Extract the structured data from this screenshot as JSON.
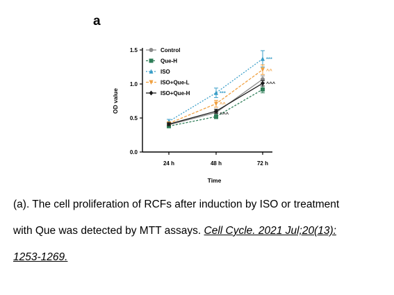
{
  "figure": {
    "panel_label": "a",
    "caption": {
      "line1": "(a). The cell proliferation of RCFs after induction by ISO or treatment",
      "line2_text": "with Que was detected by MTT assays.",
      "line2_ref": "Cell Cycle. 2021 Jul;20(13):",
      "line3_ref": "1253-1269."
    }
  },
  "chart_data": {
    "type": "line",
    "xlabel": "Time",
    "ylabel": "OD value",
    "categories": [
      "24 h",
      "48 h",
      "72 h"
    ],
    "ylim": [
      0.0,
      1.5
    ],
    "yticks": [
      "0.0",
      "0.5",
      "1.0",
      "1.5"
    ],
    "grid": false,
    "legend_position": "top-left",
    "series": [
      {
        "name": "Control",
        "values": [
          0.4,
          0.58,
          1.07
        ],
        "errors": [
          0.02,
          0.03,
          0.05
        ],
        "color": "#8a8a8a",
        "marker": "circle",
        "dash": ""
      },
      {
        "name": "Que-H",
        "values": [
          0.38,
          0.52,
          0.92
        ],
        "errors": [
          0.02,
          0.03,
          0.05
        ],
        "color": "#2e7d57",
        "marker": "square",
        "dash": "3,2"
      },
      {
        "name": "ISO",
        "values": [
          0.45,
          0.87,
          1.37
        ],
        "errors": [
          0.03,
          0.07,
          0.12
        ],
        "color": "#3a9ec8",
        "marker": "triangle",
        "dash": "2,2"
      },
      {
        "name": "ISO+Que-L",
        "values": [
          0.42,
          0.71,
          1.21
        ],
        "errors": [
          0.02,
          0.05,
          0.07
        ],
        "color": "#f0a040",
        "marker": "tridown",
        "dash": "4,2"
      },
      {
        "name": "ISO+Que-H",
        "values": [
          0.41,
          0.6,
          1.01
        ],
        "errors": [
          0.02,
          0.03,
          0.04
        ],
        "color": "#1a1a1a",
        "marker": "diamond",
        "dash": ""
      }
    ],
    "annotations": [
      {
        "text": "***",
        "category": "48 h",
        "y": 0.87,
        "color": "#3a9ec8"
      },
      {
        "text": "^^",
        "category": "48 h",
        "y": 0.71,
        "color": "#f0a040"
      },
      {
        "text": "^^^",
        "category": "48 h",
        "y": 0.56,
        "color": "#1a1a1a"
      },
      {
        "text": "***",
        "category": "72 h",
        "y": 1.37,
        "color": "#3a9ec8"
      },
      {
        "text": "^^",
        "category": "72 h",
        "y": 1.2,
        "color": "#f0a040"
      },
      {
        "text": "^^^",
        "category": "72 h",
        "y": 1.01,
        "color": "#1a1a1a"
      }
    ]
  }
}
